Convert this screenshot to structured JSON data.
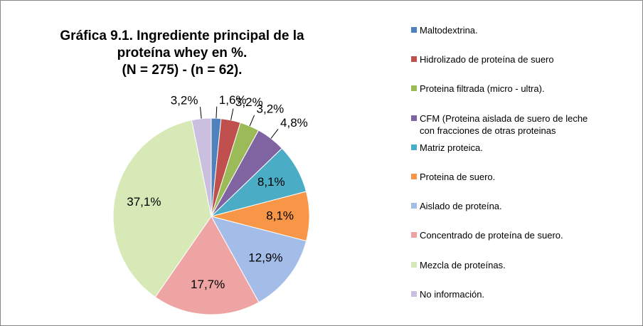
{
  "chart_data": {
    "type": "pie",
    "title": [
      "Gráfica 9.1. Ingrediente principal de la",
      "proteína whey en %.",
      "(N = 275) - (n = 62)."
    ],
    "categories": [
      "Maltodextrina.",
      "Hidrolizado de proteína de suero",
      "Proteina filtrada (micro - ultra).",
      "CFM (Proteina aislada de suero de leche con fracciones de otras proteinas",
      "Matriz proteica.",
      "Proteina de suero.",
      "Aislado de proteína.",
      "Concentrado de proteína de suero.",
      "Mezcla de proteínas.",
      "No información."
    ],
    "values": [
      1.6,
      3.2,
      3.2,
      4.8,
      8.1,
      8.1,
      12.9,
      17.7,
      37.1,
      3.2
    ],
    "value_labels": [
      "1,6%",
      "3,2%",
      "3,2%",
      "4,8%",
      "8,1%",
      "8,1%",
      "12,9%",
      "17,7%",
      "37,1%",
      "3,2%"
    ],
    "colors": [
      "#4f81bd",
      "#c0504d",
      "#9bbb59",
      "#8064a2",
      "#4bacc6",
      "#f79646",
      "#a3bde8",
      "#efa4a4",
      "#d7e9b6",
      "#cbbfe0"
    ],
    "legend": "right"
  }
}
